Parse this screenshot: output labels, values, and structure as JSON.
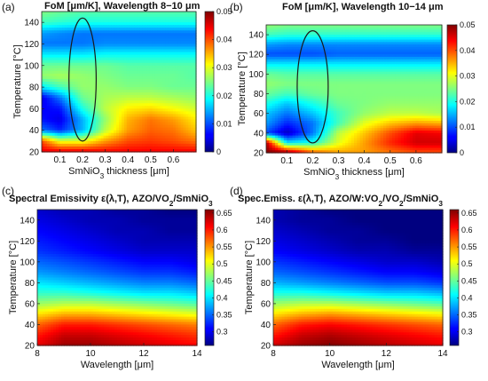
{
  "chart_data": [
    {
      "panel_label": "(a)",
      "title_parts": [
        "FoM [",
        "μ",
        "m/K], Wavelength 8−10 ",
        "μ",
        "m"
      ],
      "type": "heatmap",
      "xlabel_parts": [
        "SmNiO",
        "3",
        " thickness [",
        "μ",
        "m]"
      ],
      "ylabel": "Temperature [°C]",
      "xlim": [
        0.02,
        0.7
      ],
      "ylim": [
        20,
        150
      ],
      "x_ticks": [
        "0.1",
        "0.2",
        "0.3",
        "0.4",
        "0.5",
        "0.6"
      ],
      "x_tick_values": [
        0.1,
        0.2,
        0.3,
        0.4,
        0.5,
        0.6
      ],
      "y_ticks": [
        "20",
        "40",
        "60",
        "80",
        "100",
        "120",
        "140"
      ],
      "y_tick_values": [
        20,
        40,
        60,
        80,
        100,
        120,
        140
      ],
      "colorbar_ticks": [
        "0",
        "0.01",
        "0.02",
        "0.03",
        "0.04",
        "0.05"
      ],
      "colorbar_tick_values": [
        0,
        0.01,
        0.02,
        0.03,
        0.04,
        0.05
      ],
      "clim": [
        0,
        0.05
      ],
      "annotation": {
        "shape": "ellipse",
        "center_x": 0.2,
        "center_y": 87,
        "radius_x": 0.06,
        "radius_y": 57
      },
      "x": [
        0.02,
        0.1,
        0.2,
        0.3,
        0.4,
        0.5,
        0.6,
        0.7
      ],
      "y": [
        20,
        30,
        40,
        50,
        60,
        70,
        80,
        90,
        100,
        110,
        120,
        130,
        140,
        150
      ],
      "z": [
        [
          0.045,
          0.045,
          0.045,
          0.044,
          0.044,
          0.044,
          0.044,
          0.044
        ],
        [
          0.04,
          0.03,
          0.03,
          0.036,
          0.04,
          0.041,
          0.04,
          0.038
        ],
        [
          0.012,
          0.008,
          0.015,
          0.028,
          0.036,
          0.039,
          0.038,
          0.034
        ],
        [
          0.007,
          0.005,
          0.015,
          0.026,
          0.035,
          0.038,
          0.036,
          0.032
        ],
        [
          0.006,
          0.007,
          0.02,
          0.028,
          0.032,
          0.033,
          0.031,
          0.029
        ],
        [
          0.005,
          0.012,
          0.024,
          0.027,
          0.028,
          0.028,
          0.027,
          0.026
        ],
        [
          0.018,
          0.022,
          0.026,
          0.026,
          0.025,
          0.025,
          0.024,
          0.024
        ],
        [
          0.026,
          0.027,
          0.026,
          0.025,
          0.024,
          0.024,
          0.024,
          0.023
        ],
        [
          0.024,
          0.024,
          0.024,
          0.024,
          0.023,
          0.023,
          0.023,
          0.023
        ],
        [
          0.018,
          0.018,
          0.018,
          0.019,
          0.019,
          0.019,
          0.019,
          0.019
        ],
        [
          0.012,
          0.012,
          0.012,
          0.013,
          0.013,
          0.013,
          0.013,
          0.013
        ],
        [
          0.014,
          0.013,
          0.012,
          0.012,
          0.012,
          0.012,
          0.012,
          0.012
        ],
        [
          0.022,
          0.021,
          0.02,
          0.02,
          0.02,
          0.02,
          0.02,
          0.02
        ],
        [
          0.025,
          0.024,
          0.023,
          0.023,
          0.023,
          0.023,
          0.023,
          0.023
        ]
      ]
    },
    {
      "panel_label": "(b)",
      "title_parts": [
        "FoM [",
        "μ",
        "m/K], Wavelength 10−14 ",
        "μ",
        "m"
      ],
      "type": "heatmap",
      "xlabel_parts": [
        "SmNiO",
        "3",
        " thickness [",
        "μ",
        "m]"
      ],
      "ylabel": "Temperature [°C]",
      "xlim": [
        0.02,
        0.7
      ],
      "ylim": [
        20,
        150
      ],
      "x_ticks": [
        "0.1",
        "0.2",
        "0.3",
        "0.4",
        "0.5",
        "0.6"
      ],
      "x_tick_values": [
        0.1,
        0.2,
        0.3,
        0.4,
        0.5,
        0.6
      ],
      "y_ticks": [
        "20",
        "40",
        "60",
        "80",
        "100",
        "120",
        "140"
      ],
      "y_tick_values": [
        20,
        40,
        60,
        80,
        100,
        120,
        140
      ],
      "colorbar_ticks": [
        "0",
        "0.01",
        "0.02",
        "0.03",
        "0.04",
        "0.05"
      ],
      "colorbar_tick_values": [
        0,
        0.01,
        0.02,
        0.03,
        0.04,
        0.05
      ],
      "clim": [
        0,
        0.05
      ],
      "annotation": {
        "shape": "ellipse",
        "center_x": 0.2,
        "center_y": 87,
        "radius_x": 0.06,
        "radius_y": 57
      },
      "x": [
        0.02,
        0.1,
        0.2,
        0.3,
        0.4,
        0.5,
        0.6,
        0.7
      ],
      "y": [
        20,
        30,
        40,
        50,
        60,
        70,
        80,
        90,
        100,
        110,
        120,
        130,
        140,
        150
      ],
      "z": [
        [
          0.05,
          0.05,
          0.04,
          0.036,
          0.036,
          0.038,
          0.04,
          0.04
        ],
        [
          0.048,
          0.018,
          0.02,
          0.03,
          0.036,
          0.042,
          0.046,
          0.046
        ],
        [
          0.01,
          0.003,
          0.012,
          0.028,
          0.034,
          0.04,
          0.045,
          0.044
        ],
        [
          0.014,
          0.008,
          0.012,
          0.022,
          0.03,
          0.034,
          0.036,
          0.035
        ],
        [
          0.016,
          0.012,
          0.016,
          0.022,
          0.026,
          0.028,
          0.028,
          0.027
        ],
        [
          0.02,
          0.016,
          0.02,
          0.024,
          0.025,
          0.026,
          0.026,
          0.026
        ],
        [
          0.024,
          0.022,
          0.024,
          0.025,
          0.025,
          0.025,
          0.025,
          0.025
        ],
        [
          0.026,
          0.025,
          0.025,
          0.025,
          0.025,
          0.025,
          0.025,
          0.025
        ],
        [
          0.024,
          0.023,
          0.023,
          0.023,
          0.023,
          0.023,
          0.023,
          0.023
        ],
        [
          0.018,
          0.018,
          0.018,
          0.018,
          0.018,
          0.018,
          0.018,
          0.018
        ],
        [
          0.01,
          0.01,
          0.01,
          0.011,
          0.011,
          0.011,
          0.011,
          0.011
        ],
        [
          0.014,
          0.013,
          0.013,
          0.013,
          0.013,
          0.013,
          0.013,
          0.013
        ],
        [
          0.022,
          0.021,
          0.021,
          0.021,
          0.021,
          0.021,
          0.021,
          0.021
        ],
        [
          0.026,
          0.025,
          0.025,
          0.025,
          0.025,
          0.025,
          0.025,
          0.025
        ]
      ]
    },
    {
      "panel_label": "(c)",
      "title_parts": [
        "Spectral Emissivity ",
        "ε",
        "(",
        "λ",
        ",T), AZO/VO",
        "2",
        "/SmNiO",
        "3"
      ],
      "type": "heatmap",
      "xlabel_parts": [
        "Wavelength [",
        "μ",
        "m]"
      ],
      "ylabel": "Temperature [°C]",
      "xlim": [
        8,
        14
      ],
      "ylim": [
        20,
        150
      ],
      "x_ticks": [
        "8",
        "10",
        "12",
        "14"
      ],
      "x_tick_values": [
        8,
        10,
        12,
        14
      ],
      "y_ticks": [
        "20",
        "40",
        "60",
        "80",
        "100",
        "120",
        "140"
      ],
      "y_tick_values": [
        20,
        40,
        60,
        80,
        100,
        120,
        140
      ],
      "colorbar_ticks": [
        "0.3",
        "0.35",
        "0.4",
        "0.45",
        "0.5",
        "0.55",
        "0.6",
        "0.65"
      ],
      "colorbar_tick_values": [
        0.3,
        0.35,
        0.4,
        0.45,
        0.5,
        0.55,
        0.6,
        0.65
      ],
      "clim": [
        0.26,
        0.66
      ],
      "x": [
        8,
        9,
        10,
        11,
        12,
        13,
        14
      ],
      "y": [
        20,
        30,
        40,
        50,
        60,
        70,
        80,
        90,
        100,
        110,
        120,
        130,
        140,
        150
      ],
      "z": [
        [
          0.62,
          0.65,
          0.65,
          0.64,
          0.63,
          0.62,
          0.61
        ],
        [
          0.6,
          0.63,
          0.63,
          0.62,
          0.61,
          0.6,
          0.59
        ],
        [
          0.57,
          0.6,
          0.6,
          0.59,
          0.58,
          0.57,
          0.56
        ],
        [
          0.52,
          0.54,
          0.54,
          0.53,
          0.52,
          0.51,
          0.5
        ],
        [
          0.47,
          0.48,
          0.48,
          0.47,
          0.46,
          0.45,
          0.44
        ],
        [
          0.43,
          0.43,
          0.42,
          0.41,
          0.4,
          0.4,
          0.39
        ],
        [
          0.4,
          0.39,
          0.38,
          0.37,
          0.36,
          0.36,
          0.35
        ],
        [
          0.37,
          0.36,
          0.35,
          0.34,
          0.33,
          0.33,
          0.32
        ],
        [
          0.35,
          0.34,
          0.33,
          0.32,
          0.31,
          0.31,
          0.3
        ],
        [
          0.33,
          0.32,
          0.31,
          0.3,
          0.29,
          0.29,
          0.29
        ],
        [
          0.32,
          0.31,
          0.3,
          0.29,
          0.28,
          0.28,
          0.28
        ],
        [
          0.31,
          0.3,
          0.29,
          0.28,
          0.28,
          0.27,
          0.27
        ],
        [
          0.3,
          0.29,
          0.28,
          0.28,
          0.27,
          0.27,
          0.27
        ],
        [
          0.29,
          0.28,
          0.28,
          0.27,
          0.27,
          0.26,
          0.26
        ]
      ]
    },
    {
      "panel_label": "(d)",
      "title_parts": [
        "Spec.Emiss. ",
        "ε",
        "(",
        "λ",
        ",T), AZO/W:VO",
        "2",
        "/VO",
        "2",
        "/SmNiO",
        "3"
      ],
      "type": "heatmap",
      "xlabel_parts": [
        "Wavelength [",
        "μ",
        "m]"
      ],
      "ylabel": "Temperature [°C]",
      "xlim": [
        8,
        14
      ],
      "ylim": [
        20,
        150
      ],
      "x_ticks": [
        "8",
        "10",
        "12",
        "14"
      ],
      "x_tick_values": [
        8,
        10,
        12,
        14
      ],
      "y_ticks": [
        "20",
        "40",
        "60",
        "80",
        "100",
        "120",
        "140"
      ],
      "y_tick_values": [
        20,
        40,
        60,
        80,
        100,
        120,
        140
      ],
      "colorbar_ticks": [
        "0.3",
        "0.35",
        "0.4",
        "0.45",
        "0.5",
        "0.55",
        "0.6",
        "0.65"
      ],
      "colorbar_tick_values": [
        0.3,
        0.35,
        0.4,
        0.45,
        0.5,
        0.55,
        0.6,
        0.65
      ],
      "clim": [
        0.26,
        0.66
      ],
      "x": [
        8,
        9,
        10,
        11,
        12,
        13,
        14
      ],
      "y": [
        20,
        30,
        40,
        50,
        60,
        70,
        80,
        90,
        100,
        110,
        120,
        130,
        140,
        150
      ],
      "z": [
        [
          0.63,
          0.65,
          0.66,
          0.65,
          0.64,
          0.63,
          0.62
        ],
        [
          0.6,
          0.63,
          0.64,
          0.63,
          0.62,
          0.61,
          0.6
        ],
        [
          0.57,
          0.6,
          0.61,
          0.6,
          0.59,
          0.58,
          0.57
        ],
        [
          0.52,
          0.54,
          0.55,
          0.54,
          0.53,
          0.52,
          0.51
        ],
        [
          0.47,
          0.48,
          0.48,
          0.47,
          0.46,
          0.45,
          0.44
        ],
        [
          0.42,
          0.42,
          0.41,
          0.4,
          0.39,
          0.39,
          0.38
        ],
        [
          0.38,
          0.37,
          0.36,
          0.35,
          0.34,
          0.34,
          0.33
        ],
        [
          0.35,
          0.34,
          0.33,
          0.32,
          0.31,
          0.31,
          0.3
        ],
        [
          0.33,
          0.32,
          0.31,
          0.3,
          0.29,
          0.29,
          0.28
        ],
        [
          0.31,
          0.3,
          0.29,
          0.28,
          0.28,
          0.27,
          0.27
        ],
        [
          0.3,
          0.29,
          0.28,
          0.27,
          0.27,
          0.26,
          0.26
        ],
        [
          0.29,
          0.28,
          0.27,
          0.27,
          0.26,
          0.26,
          0.26
        ],
        [
          0.28,
          0.27,
          0.27,
          0.26,
          0.26,
          0.26,
          0.26
        ],
        [
          0.28,
          0.27,
          0.26,
          0.26,
          0.26,
          0.26,
          0.26
        ]
      ]
    }
  ]
}
